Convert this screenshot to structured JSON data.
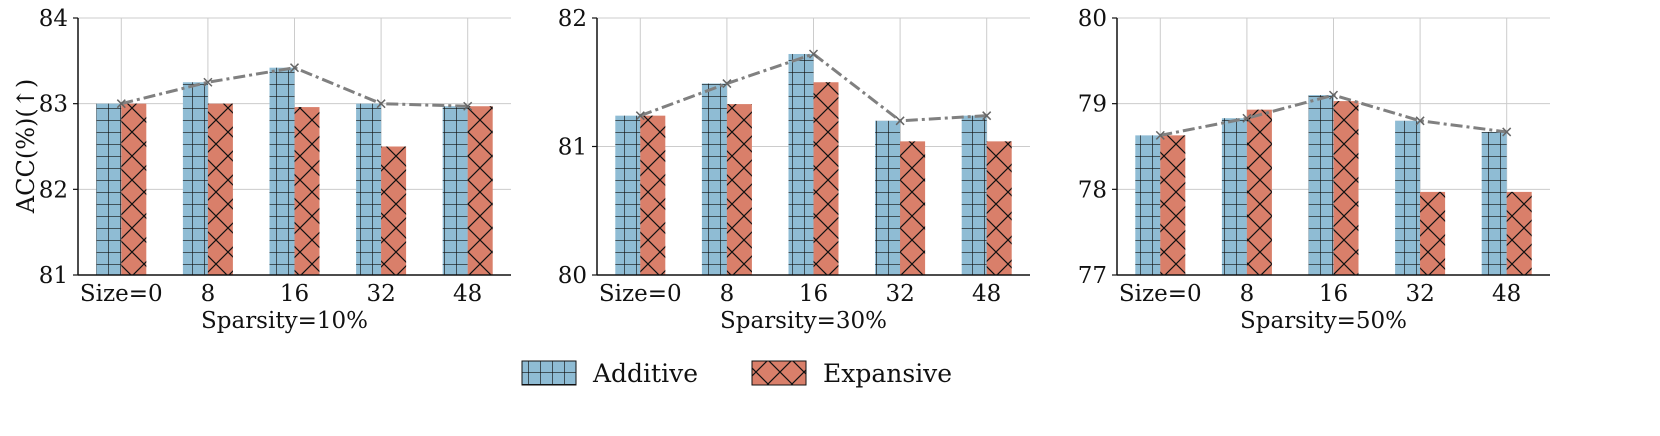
{
  "ylabel": "ACC(%)(↑)",
  "legend": {
    "placement": "bottom-center",
    "items": [
      {
        "label": "Additive",
        "color": "#8fbcd4",
        "hatch": "grid"
      },
      {
        "label": "Expansive",
        "color": "#d97f6a",
        "hatch": "cross"
      }
    ]
  },
  "chart_data": [
    {
      "type": "bar",
      "xlabel": "Sparsity=10%",
      "categories": [
        "Size=0",
        "8",
        "16",
        "32",
        "48"
      ],
      "ylim": [
        81,
        84
      ],
      "yticks": [
        "81",
        "82",
        "83",
        "84"
      ],
      "grid": true,
      "series": [
        {
          "name": "Additive",
          "values": [
            83.0,
            83.25,
            83.42,
            83.0,
            82.97
          ]
        },
        {
          "name": "Expansive",
          "values": [
            83.0,
            83.0,
            82.96,
            82.5,
            82.97
          ]
        }
      ],
      "trend_line": [
        83.0,
        83.25,
        83.42,
        83.0,
        82.97
      ]
    },
    {
      "type": "bar",
      "xlabel": "Sparsity=30%",
      "categories": [
        "Size=0",
        "8",
        "16",
        "32",
        "48"
      ],
      "ylim": [
        80,
        82
      ],
      "yticks": [
        "80",
        "81",
        "82"
      ],
      "grid": true,
      "series": [
        {
          "name": "Additive",
          "values": [
            81.24,
            81.49,
            81.72,
            81.2,
            81.24
          ]
        },
        {
          "name": "Expansive",
          "values": [
            81.24,
            81.33,
            81.5,
            81.04,
            81.04
          ]
        }
      ],
      "trend_line": [
        81.24,
        81.49,
        81.72,
        81.2,
        81.24
      ]
    },
    {
      "type": "bar",
      "xlabel": "Sparsity=50%",
      "categories": [
        "Size=0",
        "8",
        "16",
        "32",
        "48"
      ],
      "ylim": [
        77,
        80
      ],
      "yticks": [
        "77",
        "78",
        "79",
        "80"
      ],
      "grid": true,
      "series": [
        {
          "name": "Additive",
          "values": [
            78.63,
            78.83,
            79.1,
            78.8,
            78.67
          ]
        },
        {
          "name": "Expansive",
          "values": [
            78.63,
            78.93,
            79.03,
            77.97,
            77.97
          ]
        }
      ],
      "trend_line": [
        78.63,
        78.83,
        79.1,
        78.8,
        78.67
      ]
    }
  ]
}
